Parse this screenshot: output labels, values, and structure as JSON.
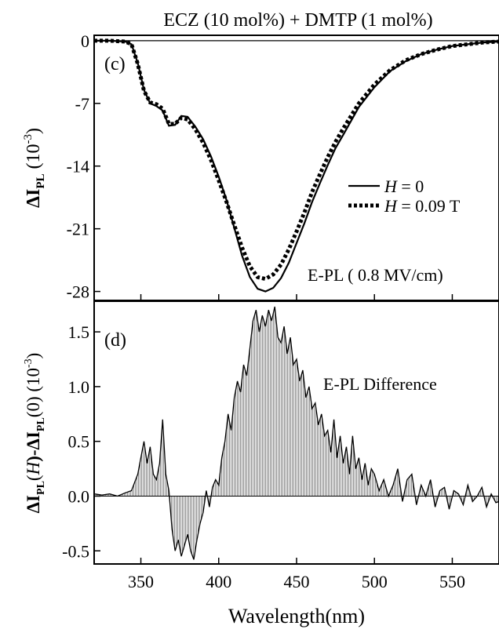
{
  "figure": {
    "title": "ECZ (10 mol%) + DMTP (1 mol%)",
    "xlabel": "Wavelength(nm)",
    "x_ticks": [
      350,
      400,
      450,
      500,
      550
    ]
  },
  "chart_data": [
    {
      "type": "line",
      "panel": "(c)",
      "ylabel": {
        "main": "ΔI",
        "sub": "PL",
        "rest": " (10",
        "sup": "-3",
        "close": ")"
      },
      "xlim": [
        320,
        580
      ],
      "ylim": [
        -29,
        0.6
      ],
      "y_ticks": [
        0,
        -7,
        -14,
        -21,
        -28
      ],
      "annotation": "E-PL ( 0.8 MV/cm)",
      "legend_position": "right",
      "series": [
        {
          "name": "H = 0",
          "name_italic": "H",
          "name_rest": " = 0",
          "style": "solid",
          "x": [
            320,
            330,
            340,
            344,
            348,
            352,
            356,
            360,
            364,
            368,
            372,
            376,
            380,
            385,
            390,
            395,
            400,
            405,
            410,
            415,
            420,
            425,
            430,
            435,
            440,
            445,
            450,
            455,
            460,
            465,
            470,
            475,
            480,
            490,
            500,
            510,
            520,
            530,
            540,
            550,
            560,
            570,
            580
          ],
          "y": [
            0,
            0,
            -0.1,
            -0.4,
            -2.5,
            -5.5,
            -7.0,
            -7.3,
            -7.8,
            -9.5,
            -9.4,
            -8.4,
            -8.5,
            -9.6,
            -11.0,
            -12.9,
            -15.2,
            -17.8,
            -20.9,
            -24.0,
            -26.4,
            -27.7,
            -28.0,
            -27.6,
            -26.5,
            -24.8,
            -22.6,
            -20.4,
            -18.0,
            -15.9,
            -13.9,
            -12.0,
            -10.5,
            -7.4,
            -5.2,
            -3.4,
            -2.3,
            -1.5,
            -1.0,
            -0.6,
            -0.4,
            -0.2,
            -0.1
          ]
        },
        {
          "name": "H = 0.09 T",
          "name_italic": "H",
          "name_rest": " = 0.09 T",
          "style": "dotted",
          "x": [
            320,
            330,
            340,
            344,
            348,
            352,
            356,
            360,
            364,
            368,
            372,
            376,
            380,
            385,
            390,
            395,
            400,
            405,
            410,
            415,
            420,
            425,
            430,
            435,
            440,
            445,
            450,
            455,
            460,
            465,
            470,
            475,
            480,
            490,
            500,
            510,
            520,
            530,
            540,
            550,
            560,
            570,
            580
          ],
          "y": [
            0,
            0,
            -0.1,
            -0.4,
            -2.6,
            -5.6,
            -6.9,
            -7.1,
            -7.6,
            -9.3,
            -9.3,
            -8.6,
            -8.8,
            -9.9,
            -11.4,
            -13.3,
            -15.6,
            -18.0,
            -20.6,
            -23.1,
            -25.2,
            -26.4,
            -26.6,
            -26.1,
            -25.0,
            -23.3,
            -21.3,
            -19.2,
            -16.9,
            -14.9,
            -13.0,
            -11.3,
            -9.8,
            -7.0,
            -4.9,
            -3.3,
            -2.2,
            -1.5,
            -1.0,
            -0.6,
            -0.4,
            -0.2,
            -0.1
          ]
        }
      ]
    },
    {
      "type": "area",
      "panel": "(d)",
      "ylabel": {
        "main": "ΔI",
        "sub": "PL",
        "paren": "(",
        "italic": "H",
        "mid": ")-ΔI",
        "sub2": "PL",
        "rest": "(0) (10",
        "sup": "-3",
        "close": ")"
      },
      "xlim": [
        320,
        580
      ],
      "ylim": [
        -0.62,
        1.78
      ],
      "y_ticks": [
        -0.5,
        0.0,
        0.5,
        1.0,
        1.5
      ],
      "annotation": "E-PL Difference",
      "series": [
        {
          "name": "",
          "x": [
            320,
            325,
            330,
            335,
            340,
            344,
            348,
            350,
            352,
            354,
            356,
            358,
            360,
            362,
            364,
            366,
            368,
            370,
            372,
            374,
            376,
            378,
            380,
            382,
            384,
            386,
            388,
            390,
            392,
            394,
            396,
            398,
            400,
            402,
            404,
            406,
            408,
            410,
            412,
            414,
            416,
            418,
            420,
            422,
            424,
            426,
            428,
            430,
            432,
            434,
            436,
            438,
            440,
            442,
            444,
            446,
            448,
            450,
            452,
            454,
            456,
            458,
            460,
            462,
            464,
            466,
            468,
            470,
            472,
            474,
            476,
            478,
            480,
            482,
            484,
            486,
            488,
            490,
            492,
            494,
            496,
            498,
            500,
            503,
            506,
            509,
            512,
            515,
            518,
            521,
            524,
            527,
            530,
            533,
            536,
            539,
            542,
            545,
            548,
            551,
            554,
            557,
            560,
            563,
            566,
            569,
            572,
            575,
            578,
            580
          ],
          "y": [
            0.02,
            0.01,
            0.02,
            0.0,
            0.03,
            0.05,
            0.2,
            0.35,
            0.5,
            0.3,
            0.45,
            0.2,
            0.15,
            0.3,
            0.7,
            0.2,
            0.05,
            -0.3,
            -0.5,
            -0.4,
            -0.55,
            -0.45,
            -0.35,
            -0.5,
            -0.58,
            -0.4,
            -0.25,
            -0.15,
            0.05,
            -0.1,
            0.08,
            0.15,
            0.1,
            0.35,
            0.5,
            0.75,
            0.6,
            0.9,
            1.05,
            0.95,
            1.2,
            1.1,
            1.35,
            1.6,
            1.7,
            1.5,
            1.65,
            1.55,
            1.7,
            1.6,
            1.73,
            1.45,
            1.4,
            1.55,
            1.3,
            1.45,
            1.2,
            1.25,
            1.05,
            1.15,
            0.9,
            1.0,
            0.8,
            0.85,
            0.65,
            0.75,
            0.55,
            0.6,
            0.4,
            0.7,
            0.35,
            0.55,
            0.3,
            0.45,
            0.2,
            0.55,
            0.25,
            0.35,
            0.15,
            0.3,
            0.1,
            0.25,
            0.2,
            0.05,
            0.15,
            0.0,
            0.1,
            0.25,
            -0.05,
            0.15,
            0.2,
            -0.08,
            0.1,
            0.0,
            0.15,
            -0.1,
            0.05,
            0.08,
            -0.12,
            0.05,
            0.02,
            -0.08,
            0.1,
            -0.05,
            0.0,
            0.08,
            -0.1,
            0.02,
            -0.06,
            -0.05
          ]
        }
      ]
    }
  ]
}
